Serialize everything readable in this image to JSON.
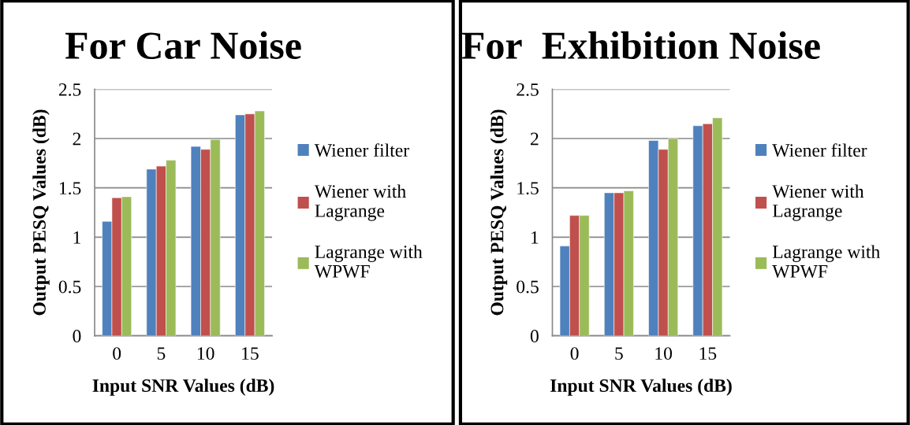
{
  "chart_data": [
    {
      "type": "bar",
      "title": "For Car Noise",
      "xlabel": "Input SNR Values (dB)",
      "ylabel": "Output PESQ Values (dB)",
      "categories": [
        "0",
        "5",
        "10",
        "15"
      ],
      "ylim": [
        0,
        2.5
      ],
      "yticks": [
        0,
        0.5,
        1,
        1.5,
        2,
        2.5
      ],
      "grid": "y",
      "legend": "right",
      "series": [
        {
          "name": "Wiener filter",
          "color": "#4f81bd",
          "values": [
            1.16,
            1.69,
            1.92,
            2.24
          ]
        },
        {
          "name": "Wiener with Lagrange",
          "color": "#c0504d",
          "values": [
            1.4,
            1.72,
            1.89,
            2.25
          ]
        },
        {
          "name": "Lagrange with WPWF",
          "color": "#9bbb59",
          "values": [
            1.41,
            1.78,
            1.99,
            2.28
          ]
        }
      ]
    },
    {
      "type": "bar",
      "title": "For  Exhibition Noise",
      "xlabel": "Input SNR Values (dB)",
      "ylabel": "Output PESQ Values (dB)",
      "categories": [
        "0",
        "5",
        "10",
        "15"
      ],
      "ylim": [
        0,
        2.5
      ],
      "yticks": [
        0,
        0.5,
        1,
        1.5,
        2,
        2.5
      ],
      "grid": "y",
      "legend": "right",
      "series": [
        {
          "name": "Wiener filter",
          "color": "#4f81bd",
          "values": [
            0.91,
            1.45,
            1.98,
            2.13
          ]
        },
        {
          "name": "Wiener with Lagrange",
          "color": "#c0504d",
          "values": [
            1.22,
            1.45,
            1.89,
            2.15
          ]
        },
        {
          "name": "Lagrange with WPWF",
          "color": "#9bbb59",
          "values": [
            1.22,
            1.47,
            2.0,
            2.21
          ]
        }
      ]
    }
  ]
}
